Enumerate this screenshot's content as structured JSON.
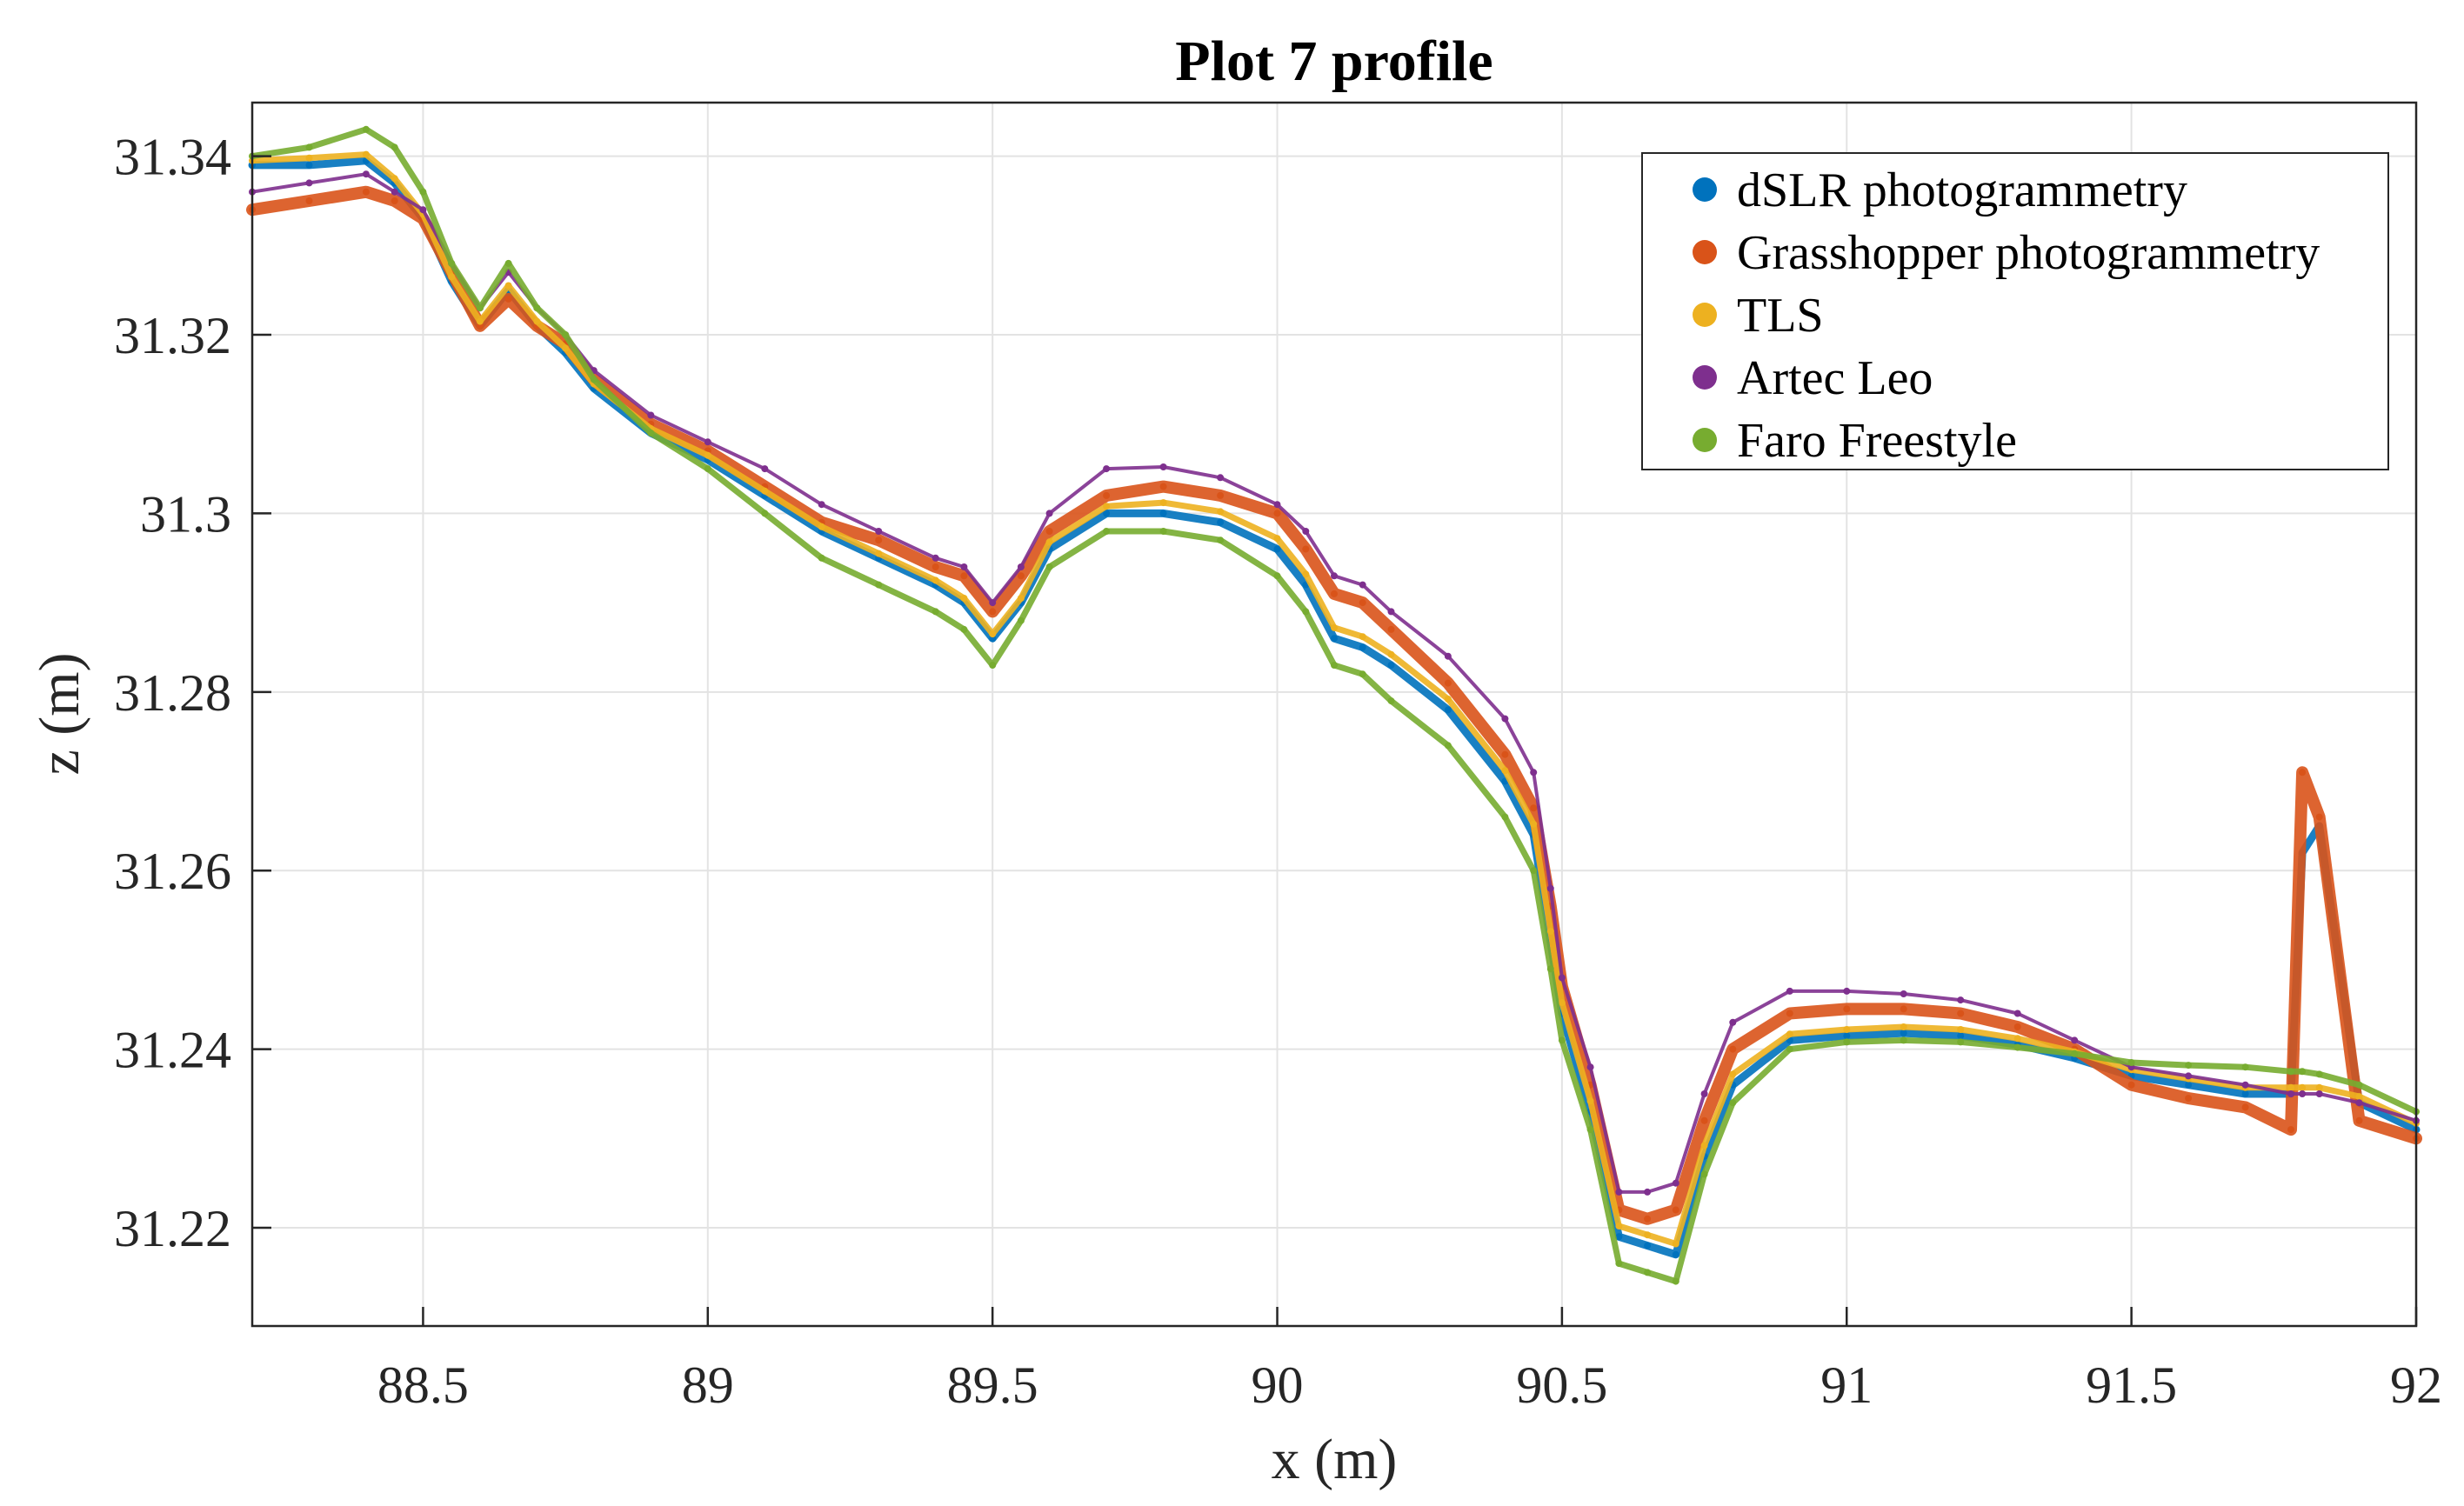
{
  "chart_data": {
    "type": "scatter",
    "title": "Plot 7 profile",
    "xlabel": "x (m)",
    "ylabel": "z (m)",
    "xlim": [
      88.2,
      92.0
    ],
    "ylim": [
      31.209,
      31.346
    ],
    "xticks": [
      88.5,
      89,
      89.5,
      90,
      90.5,
      91,
      91.5,
      92
    ],
    "xtick_labels": [
      "88.5",
      "89",
      "89.5",
      "90",
      "90.5",
      "91",
      "91.5",
      "92"
    ],
    "yticks": [
      31.22,
      31.24,
      31.26,
      31.28,
      31.3,
      31.32,
      31.34
    ],
    "ytick_labels": [
      "31.22",
      "31.24",
      "31.26",
      "31.28",
      "31.3",
      "31.32",
      "31.34"
    ],
    "grid": true,
    "legend_position": "top-right",
    "series": [
      {
        "name": "dSLR photogrammetry",
        "color": "#0072BD",
        "x": [
          88.2,
          88.3,
          88.4,
          88.45,
          88.5,
          88.55,
          88.6,
          88.65,
          88.7,
          88.75,
          88.8,
          88.9,
          89.0,
          89.1,
          89.2,
          89.3,
          89.4,
          89.45,
          89.5,
          89.55,
          89.6,
          89.7,
          89.8,
          89.9,
          90.0,
          90.05,
          90.1,
          90.15,
          90.2,
          90.3,
          90.4,
          90.45,
          90.48,
          90.5,
          90.55,
          90.6,
          90.65,
          90.7,
          90.75,
          90.8,
          90.9,
          91.0,
          91.1,
          91.2,
          91.3,
          91.4,
          91.5,
          91.6,
          91.7,
          91.78,
          91.8,
          91.83,
          91.9,
          92.0
        ],
        "y": [
          31.339,
          31.339,
          31.3395,
          31.337,
          31.333,
          31.326,
          31.321,
          31.325,
          31.321,
          31.318,
          31.314,
          31.309,
          31.306,
          31.302,
          31.298,
          31.295,
          31.292,
          31.29,
          31.286,
          31.29,
          31.296,
          31.3,
          31.3,
          31.299,
          31.296,
          31.292,
          31.286,
          31.285,
          31.283,
          31.278,
          31.27,
          31.264,
          31.252,
          31.244,
          31.233,
          31.219,
          31.218,
          31.217,
          31.228,
          31.236,
          31.241,
          31.2415,
          31.2418,
          31.2415,
          31.2405,
          31.239,
          31.237,
          31.236,
          31.235,
          31.235,
          31.262,
          31.265,
          31.234,
          31.231
        ]
      },
      {
        "name": "Grasshopper photogrammetry",
        "color": "#D95319",
        "x": [
          88.2,
          88.3,
          88.4,
          88.45,
          88.5,
          88.55,
          88.6,
          88.65,
          88.7,
          88.75,
          88.8,
          88.9,
          89.0,
          89.1,
          89.2,
          89.3,
          89.4,
          89.45,
          89.5,
          89.55,
          89.6,
          89.7,
          89.8,
          89.9,
          90.0,
          90.05,
          90.1,
          90.15,
          90.2,
          90.3,
          90.4,
          90.45,
          90.48,
          90.5,
          90.55,
          90.6,
          90.65,
          90.7,
          90.75,
          90.8,
          90.9,
          91.0,
          91.1,
          91.2,
          91.3,
          91.4,
          91.5,
          91.6,
          91.7,
          91.78,
          91.8,
          91.83,
          91.9,
          92.0
        ],
        "y": [
          31.334,
          31.335,
          31.336,
          31.335,
          31.333,
          31.327,
          31.321,
          31.324,
          31.321,
          31.319,
          31.315,
          31.31,
          31.307,
          31.303,
          31.299,
          31.297,
          31.294,
          31.293,
          31.289,
          31.293,
          31.298,
          31.302,
          31.303,
          31.302,
          31.3,
          31.296,
          31.291,
          31.29,
          31.287,
          31.281,
          31.273,
          31.267,
          31.256,
          31.247,
          31.236,
          31.222,
          31.221,
          31.222,
          31.232,
          31.24,
          31.244,
          31.2445,
          31.2445,
          31.244,
          31.2425,
          31.24,
          31.236,
          31.2345,
          31.2335,
          31.231,
          31.271,
          31.266,
          31.232,
          31.23
        ]
      },
      {
        "name": "TLS",
        "color": "#EDB120",
        "x": [
          88.2,
          88.3,
          88.4,
          88.45,
          88.5,
          88.55,
          88.6,
          88.65,
          88.7,
          88.75,
          88.8,
          88.9,
          89.0,
          89.1,
          89.2,
          89.3,
          89.4,
          89.45,
          89.5,
          89.55,
          89.6,
          89.7,
          89.8,
          89.9,
          90.0,
          90.05,
          90.1,
          90.15,
          90.2,
          90.3,
          90.4,
          90.45,
          90.48,
          90.5,
          90.55,
          90.6,
          90.65,
          90.7,
          90.75,
          90.8,
          90.9,
          91.0,
          91.1,
          91.2,
          91.3,
          91.4,
          91.5,
          91.6,
          91.7,
          91.78,
          91.8,
          91.83,
          91.9,
          92.0
        ],
        "y": [
          31.3395,
          31.3398,
          31.3402,
          31.3375,
          31.3335,
          31.3265,
          31.3215,
          31.3255,
          31.3215,
          31.3185,
          31.3145,
          31.3095,
          31.3065,
          31.3025,
          31.2985,
          31.2955,
          31.2925,
          31.2905,
          31.2865,
          31.2905,
          31.2968,
          31.3008,
          31.3012,
          31.3002,
          31.2972,
          31.2932,
          31.2872,
          31.2862,
          31.2842,
          31.2792,
          31.2712,
          31.2652,
          31.2532,
          31.2452,
          31.2342,
          31.2202,
          31.2192,
          31.2182,
          31.2292,
          31.2372,
          31.2417,
          31.2422,
          31.2425,
          31.2422,
          31.2412,
          31.2397,
          31.2377,
          31.2367,
          31.2357,
          31.2357,
          31.2357,
          31.2357,
          31.2347,
          31.2317
        ]
      },
      {
        "name": "Artec Leo",
        "color": "#7E2F8E",
        "x": [
          88.2,
          88.3,
          88.4,
          88.45,
          88.5,
          88.55,
          88.6,
          88.65,
          88.7,
          88.75,
          88.8,
          88.9,
          89.0,
          89.1,
          89.2,
          89.3,
          89.4,
          89.45,
          89.5,
          89.55,
          89.6,
          89.7,
          89.8,
          89.9,
          90.0,
          90.05,
          90.1,
          90.15,
          90.2,
          90.3,
          90.4,
          90.45,
          90.48,
          90.5,
          90.55,
          90.6,
          90.65,
          90.7,
          90.75,
          90.8,
          90.9,
          91.0,
          91.1,
          91.2,
          91.3,
          91.4,
          91.5,
          91.6,
          91.7,
          91.78,
          91.8,
          91.83,
          91.9,
          92.0
        ],
        "y": [
          31.336,
          31.337,
          31.338,
          31.336,
          31.334,
          31.328,
          31.323,
          31.327,
          31.323,
          31.32,
          31.316,
          31.311,
          31.308,
          31.305,
          31.301,
          31.298,
          31.295,
          31.294,
          31.29,
          31.294,
          31.3,
          31.305,
          31.3052,
          31.304,
          31.301,
          31.298,
          31.293,
          31.292,
          31.289,
          31.284,
          31.277,
          31.271,
          31.258,
          31.248,
          31.238,
          31.224,
          31.224,
          31.225,
          31.235,
          31.243,
          31.2465,
          31.2465,
          31.2462,
          31.2455,
          31.244,
          31.241,
          31.238,
          31.237,
          31.236,
          31.235,
          31.235,
          31.235,
          31.234,
          31.232
        ]
      },
      {
        "name": "Faro Freestyle",
        "color": "#77AC30",
        "x": [
          88.2,
          88.3,
          88.4,
          88.45,
          88.5,
          88.55,
          88.6,
          88.65,
          88.7,
          88.75,
          88.8,
          88.9,
          89.0,
          89.1,
          89.2,
          89.3,
          89.4,
          89.45,
          89.5,
          89.55,
          89.6,
          89.7,
          89.8,
          89.9,
          90.0,
          90.05,
          90.1,
          90.15,
          90.2,
          90.3,
          90.4,
          90.45,
          90.48,
          90.5,
          90.55,
          90.6,
          90.65,
          90.7,
          90.75,
          90.8,
          90.9,
          91.0,
          91.1,
          91.2,
          91.3,
          91.4,
          91.5,
          91.6,
          91.7,
          91.78,
          91.8,
          91.83,
          91.9,
          92.0
        ],
        "y": [
          31.34,
          31.341,
          31.343,
          31.341,
          31.336,
          31.328,
          31.323,
          31.328,
          31.323,
          31.32,
          31.315,
          31.309,
          31.305,
          31.3,
          31.295,
          31.292,
          31.289,
          31.287,
          31.283,
          31.288,
          31.294,
          31.298,
          31.298,
          31.297,
          31.293,
          31.289,
          31.283,
          31.282,
          31.279,
          31.274,
          31.266,
          31.26,
          31.249,
          31.241,
          31.231,
          31.216,
          31.215,
          31.214,
          31.226,
          31.234,
          31.24,
          31.2408,
          31.241,
          31.2408,
          31.2402,
          31.2395,
          31.2385,
          31.2382,
          31.238,
          31.2375,
          31.2375,
          31.2372,
          31.236,
          31.233
        ]
      }
    ]
  }
}
